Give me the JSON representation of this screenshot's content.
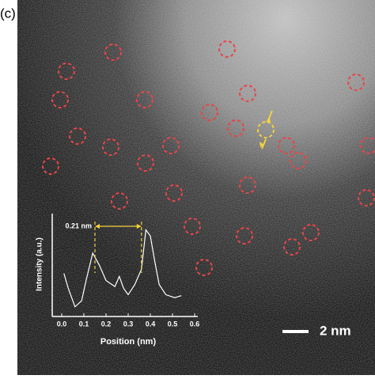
{
  "panel_label": "(c)",
  "scale_bar": "2 nm",
  "chart_data": {
    "type": "line",
    "xlabel": "Position (nm)",
    "ylabel": "Intensity (a.u.)",
    "annotation": "0.21 nm",
    "peak_markers_x": [
      0.15,
      0.36
    ],
    "x": [
      0.01,
      0.03,
      0.06,
      0.09,
      0.11,
      0.14,
      0.17,
      0.2,
      0.24,
      0.26,
      0.28,
      0.3,
      0.33,
      0.36,
      0.38,
      0.4,
      0.42,
      0.44,
      0.47,
      0.51,
      0.54
    ],
    "series": [
      {
        "name": "Intensity",
        "color": "#ffffff",
        "values": [
          0.41,
          0.26,
          0.08,
          0.14,
          0.34,
          0.61,
          0.49,
          0.34,
          0.28,
          0.38,
          0.26,
          0.2,
          0.3,
          0.45,
          0.84,
          0.78,
          0.53,
          0.3,
          0.2,
          0.17,
          0.19
        ]
      }
    ],
    "xlim": [
      0,
      0.6
    ],
    "ylim": [
      0,
      1
    ],
    "xticks": [
      {
        "value": 0,
        "label": "0.0"
      },
      0.1,
      0.2,
      0.3,
      0.4,
      0.5,
      0.6
    ]
  }
}
